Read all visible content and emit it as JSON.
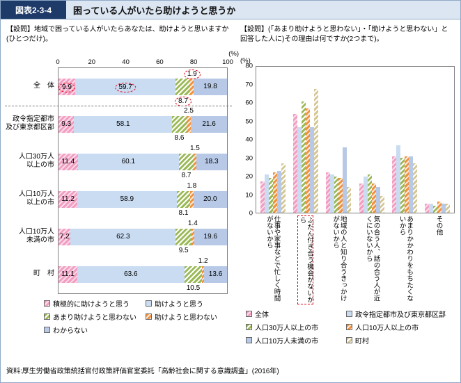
{
  "header": {
    "figure_label": "図表2-3-4",
    "title": "困っている人がいたら助けようと思うか"
  },
  "source": "資料:厚生労働省政策統括官付政策評価官室委託「高齢社会に関する意識調査」(2016年)",
  "colors": {
    "pink": "#f19ec2",
    "blue": "#c9dcf2",
    "green": "#9bb957",
    "orange": "#f0913f",
    "periwinkle": "#b7c9e6",
    "tan": "#d5c795",
    "header_navy": "#1d3a68",
    "header_strip": "#dce6f2",
    "frame_blue": "#8fa8c8",
    "highlight_red": "#e60012"
  },
  "chart_data": [
    {
      "type": "bar",
      "orientation": "horizontal-stacked",
      "question": "【設問】地域で困っている人がいたらあなたは、助けようと思いますか(ひとつだけ)。",
      "unit": "(%)",
      "xlim": [
        0,
        100
      ],
      "axis_ticks": [
        0,
        20,
        40,
        60,
        80,
        100
      ],
      "categories": [
        "全　体",
        "政令指定都市\n及び東京都区部",
        "人口30万人\n以上の市",
        "人口10万人\n以上の市",
        "人口10万人\n未満の市",
        "町　村"
      ],
      "series": [
        {
          "name": "積極的に助けようと思う",
          "color": "pink",
          "values": [
            9.9,
            9.3,
            11.4,
            11.2,
            7.2,
            11.1
          ]
        },
        {
          "name": "助けようと思う",
          "color": "blue",
          "values": [
            59.7,
            58.1,
            60.1,
            58.9,
            62.3,
            63.6
          ]
        },
        {
          "name": "あまり助けようと思わない",
          "color": "green",
          "values": [
            8.7,
            8.6,
            8.7,
            8.1,
            9.5,
            10.5
          ]
        },
        {
          "name": "助けようと思わない",
          "color": "orange",
          "values": [
            1.9,
            2.5,
            1.5,
            1.8,
            1.4,
            1.2
          ]
        },
        {
          "name": "わからない",
          "color": "periwinkle",
          "values": [
            19.8,
            21.6,
            18.3,
            20.0,
            19.6,
            13.6
          ]
        }
      ],
      "highlighted_row": "全　体",
      "circled_values": [
        9.9,
        59.7,
        8.7,
        1.9
      ],
      "legend_position": "bottom",
      "grid": false
    },
    {
      "type": "bar",
      "orientation": "vertical-grouped",
      "question": "【設問】(「あまり助けようと思わない」・「助けようと思わない」と回答した人に)その理由は何ですか(2つまで)。",
      "unit": "(%)",
      "ylim": [
        0,
        80
      ],
      "axis_ticks": [
        0,
        10,
        20,
        30,
        40,
        50,
        60,
        70,
        80
      ],
      "categories": [
        "仕事や家事などで忙しく時間がないから",
        "ふだん付き合う機会がないから",
        "地域の人と知り合うきっかけがないから",
        "気の合う人、話の合う人が近くにいないから",
        "あまりかかわりをもちたくないから",
        "その他"
      ],
      "highlighted_category": "ふだん付き合う機会がないから",
      "series": [
        {
          "name": "全体",
          "color": "pink",
          "values": [
            17,
            54,
            22,
            16,
            31,
            5
          ]
        },
        {
          "name": "政令指定都市及び東京都区部",
          "color": "blue",
          "values": [
            21,
            47,
            21,
            20,
            37,
            5
          ]
        },
        {
          "name": "人口30万人以上の市",
          "color": "green",
          "values": [
            19,
            61,
            20,
            21,
            30,
            4
          ]
        },
        {
          "name": "人口10万人以上の市",
          "color": "orange",
          "values": [
            22,
            57,
            19,
            16,
            31,
            6
          ]
        },
        {
          "name": "人口10万人未満の市",
          "color": "periwinkle",
          "values": [
            23,
            47,
            36,
            14,
            31,
            5
          ]
        },
        {
          "name": "町村",
          "color": "tan",
          "values": [
            27,
            68,
            14,
            9,
            27,
            5
          ]
        }
      ],
      "legend_position": "bottom",
      "grid": false
    }
  ]
}
